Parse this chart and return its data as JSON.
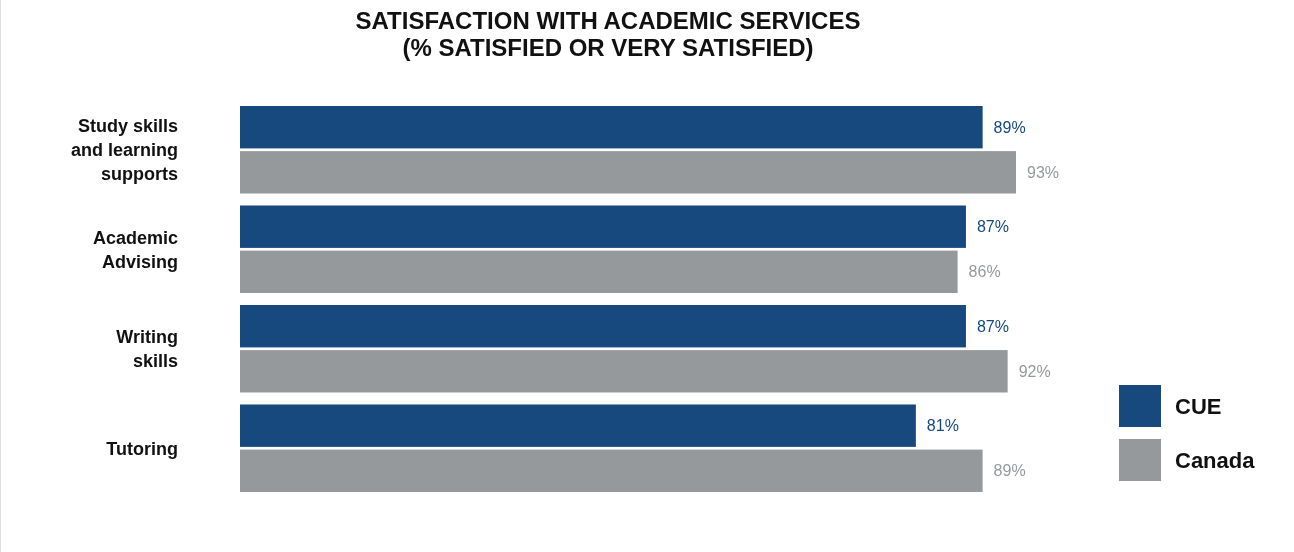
{
  "chart_data": {
    "type": "bar",
    "orientation": "horizontal",
    "title": "SATISFACTION WITH ACADEMIC SERVICES\n(% SATISFIED OR VERY SATISFIED)",
    "categories": [
      "Study skills\nand learning\nsupports",
      "Academic\nAdvising",
      "Writing\nskills",
      "Tutoring"
    ],
    "series": [
      {
        "name": "CUE",
        "color": "#17497e",
        "values": [
          89,
          87,
          87,
          81
        ],
        "value_labels": [
          "89%",
          "87%",
          "87%",
          "81%"
        ]
      },
      {
        "name": "Canada",
        "color": "#96999c",
        "values": [
          93,
          86,
          92,
          89
        ],
        "value_labels": [
          "93%",
          "86%",
          "92%",
          "89%"
        ]
      }
    ],
    "legend": "bottom right"
  }
}
